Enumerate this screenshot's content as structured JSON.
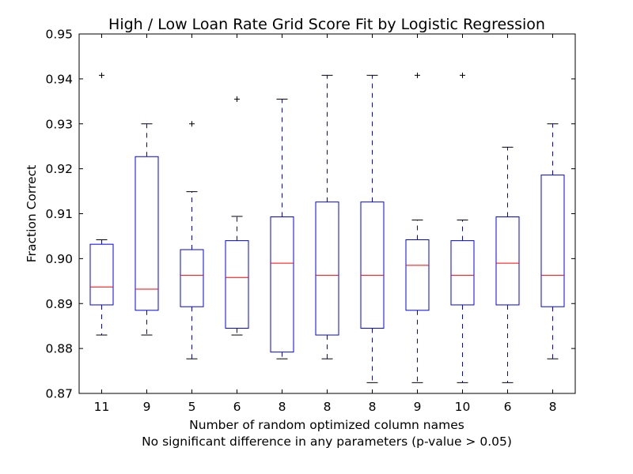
{
  "chart_data": {
    "type": "boxplot",
    "title": "High / Low Loan Rate Grid Score Fit by Logistic Regression",
    "xlabel_line1": "Number of random optimized column names",
    "xlabel_line2": "No significant difference in any parameters (p-value > 0.05)",
    "ylabel": "Fraction Correct",
    "ylim": [
      0.87,
      0.95
    ],
    "yticks": [
      "0.87",
      "0.88",
      "0.89",
      "0.90",
      "0.91",
      "0.92",
      "0.93",
      "0.94",
      "0.95"
    ],
    "categories": [
      "11",
      "9",
      "5",
      "6",
      "8",
      "8",
      "8",
      "9",
      "10",
      "6",
      "8"
    ],
    "boxes": [
      {
        "whisker_low": 0.883,
        "q1": 0.8897,
        "median": 0.8937,
        "q3": 0.9032,
        "whisker_high": 0.9042,
        "outliers": [
          0.9408
        ]
      },
      {
        "whisker_low": 0.883,
        "q1": 0.8885,
        "median": 0.8932,
        "q3": 0.9227,
        "whisker_high": 0.93,
        "outliers": []
      },
      {
        "whisker_low": 0.8777,
        "q1": 0.8893,
        "median": 0.8963,
        "q3": 0.902,
        "whisker_high": 0.9149,
        "outliers": [
          0.93
        ]
      },
      {
        "whisker_low": 0.883,
        "q1": 0.8845,
        "median": 0.8958,
        "q3": 0.904,
        "whisker_high": 0.9094,
        "outliers": [
          0.9355
        ]
      },
      {
        "whisker_low": 0.8777,
        "q1": 0.8792,
        "median": 0.899,
        "q3": 0.9093,
        "whisker_high": 0.9355,
        "outliers": []
      },
      {
        "whisker_low": 0.8777,
        "q1": 0.883,
        "median": 0.8963,
        "q3": 0.9126,
        "whisker_high": 0.9408,
        "outliers": []
      },
      {
        "whisker_low": 0.8724,
        "q1": 0.8845,
        "median": 0.8963,
        "q3": 0.9126,
        "whisker_high": 0.9408,
        "outliers": []
      },
      {
        "whisker_low": 0.8724,
        "q1": 0.8885,
        "median": 0.8985,
        "q3": 0.9042,
        "whisker_high": 0.9086,
        "outliers": [
          0.9408
        ]
      },
      {
        "whisker_low": 0.8724,
        "q1": 0.8897,
        "median": 0.8963,
        "q3": 0.904,
        "whisker_high": 0.9086,
        "outliers": [
          0.9408
        ]
      },
      {
        "whisker_low": 0.8724,
        "q1": 0.8897,
        "median": 0.899,
        "q3": 0.9093,
        "whisker_high": 0.9248,
        "outliers": []
      },
      {
        "whisker_low": 0.8777,
        "q1": 0.8893,
        "median": 0.8963,
        "q3": 0.9186,
        "whisker_high": 0.93,
        "outliers": []
      }
    ],
    "grid": false,
    "colors": {
      "box": "#0000ff",
      "median": "#ff0000",
      "outlier": "#000000",
      "axes": "#000000"
    }
  }
}
